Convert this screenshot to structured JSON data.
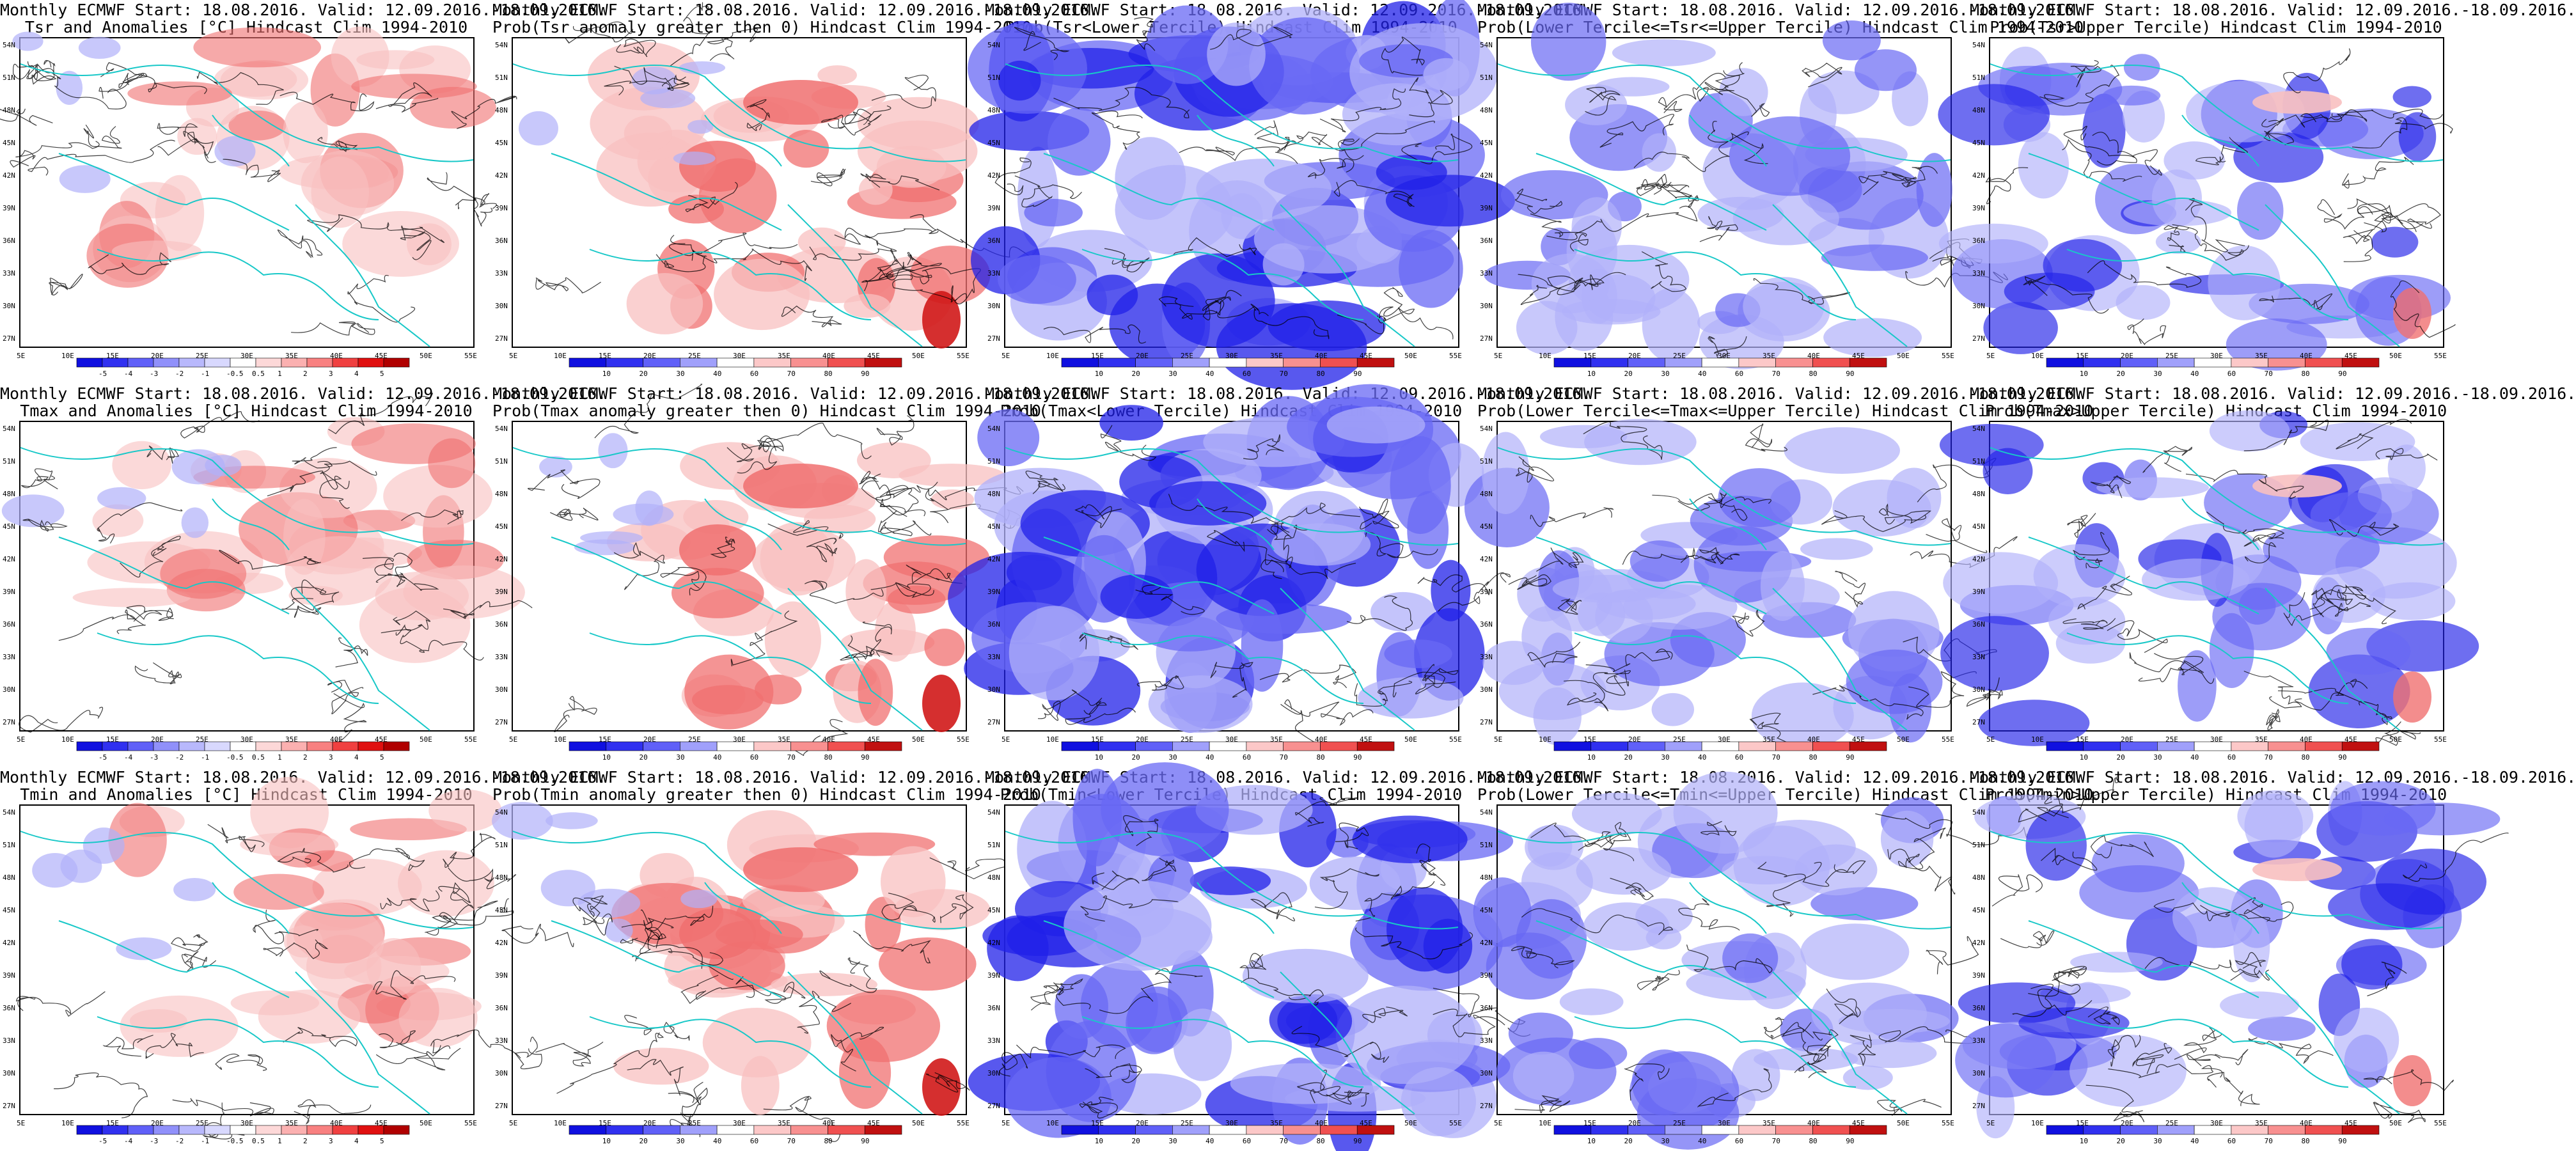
{
  "panels": [
    {
      "title1": "Monthly ECMWF Start: 18.08.2016. Valid: 12.09.2016.-18.09.2016.",
      "title2": "Tsr and Anomalies [°C] Hindcast Clim 1994-2010",
      "kind": "anom",
      "colorbar": "anomaly"
    },
    {
      "title1": "Monthly ECMWF Start: 18.08.2016. Valid: 12.09.2016.-18.09.2016.",
      "title2": "Prob(Tsr anomaly greater then 0) Hindcast Clim 1994-2010",
      "kind": "probpos",
      "colorbar": "prob"
    },
    {
      "title1": "Monthly ECMWF Start: 18.08.2016. Valid: 12.09.2016.-18.09.2016.",
      "title2": "Prob(Tsr<Lower Tercile) Hindcast Clim 1994-2010",
      "kind": "lower",
      "colorbar": "prob"
    },
    {
      "title1": "Monthly ECMWF Start: 18.08.2016. Valid: 12.09.2016.-18.09.2016.",
      "title2": "Prob(Lower Tercile<=Tsr<=Upper Tercile) Hindcast Clim 1994-2010",
      "kind": "middle",
      "colorbar": "prob"
    },
    {
      "title1": "Monthly ECMWF Start: 18.08.2016. Valid: 12.09.2016.-18.09.2016.",
      "title2": "Prob(Tsr>Upper Tercile) Hindcast Clim 1994-2010",
      "kind": "upper",
      "colorbar": "prob"
    },
    {
      "title1": "Monthly ECMWF Start: 18.08.2016. Valid: 12.09.2016.-18.09.2016.",
      "title2": "Tmax and Anomalies [°C] Hindcast Clim 1994-2010",
      "kind": "anom",
      "colorbar": "anomaly"
    },
    {
      "title1": "Monthly ECMWF Start: 18.08.2016. Valid: 12.09.2016.-18.09.2016.",
      "title2": "Prob(Tmax anomaly greater then 0) Hindcast Clim 1994-2010",
      "kind": "probpos",
      "colorbar": "prob"
    },
    {
      "title1": "Monthly ECMWF Start: 18.08.2016. Valid: 12.09.2016.-18.09.2016.",
      "title2": "Prob(Tmax<Lower Tercile) Hindcast Clim 1994-2010",
      "kind": "lower",
      "colorbar": "prob"
    },
    {
      "title1": "Monthly ECMWF Start: 18.08.2016. Valid: 12.09.2016.-18.09.2016.",
      "title2": "Prob(Lower Tercile<=Tmax<=Upper Tercile) Hindcast Clim 1994-2010",
      "kind": "middle",
      "colorbar": "prob"
    },
    {
      "title1": "Monthly ECMWF Start: 18.08.2016. Valid: 12.09.2016.-18.09.2016.",
      "title2": "Prob(Tmax>Upper Tercile) Hindcast Clim 1994-2010",
      "kind": "upper",
      "colorbar": "prob"
    },
    {
      "title1": "Monthly ECMWF Start: 18.08.2016. Valid: 12.09.2016.-18.09.2016.",
      "title2": "Tmin and Anomalies [°C] Hindcast Clim 1994-2010",
      "kind": "anom",
      "colorbar": "anomaly"
    },
    {
      "title1": "Monthly ECMWF Start: 18.08.2016. Valid: 12.09.2016.-18.09.2016.",
      "title2": "Prob(Tmin anomaly greater then 0) Hindcast Clim 1994-2010",
      "kind": "probpos",
      "colorbar": "prob"
    },
    {
      "title1": "Monthly ECMWF Start: 18.08.2016. Valid: 12.09.2016.-18.09.2016.",
      "title2": "Prob(Tmin<Lower Tercile) Hindcast Clim 1994-2010",
      "kind": "lower",
      "colorbar": "prob"
    },
    {
      "title1": "Monthly ECMWF Start: 18.08.2016. Valid: 12.09.2016.-18.09.2016.",
      "title2": "Prob(Lower Tercile<=Tmin<=Upper Tercile) Hindcast Clim 1994-2010",
      "kind": "middle",
      "colorbar": "prob"
    },
    {
      "title1": "Monthly ECMWF Start: 18.08.2016. Valid: 12.09.2016.-18.09.2016.",
      "title2": "Prob(Tmin>Upper Tercile) Hindcast Clim 1994-2010",
      "kind": "upper",
      "colorbar": "prob"
    }
  ],
  "lat_labels": [
    "54N",
    "51N",
    "48N",
    "45N",
    "42N",
    "39N",
    "36N",
    "33N",
    "30N",
    "27N"
  ],
  "lon_labels": [
    "5E",
    "10E",
    "15E",
    "20E",
    "25E",
    "30E",
    "35E",
    "40E",
    "45E",
    "50E",
    "55E"
  ],
  "colorbars": {
    "anomaly": {
      "ticks": [
        "-5",
        "-4",
        "-3",
        "-2",
        "-1",
        "-0.5",
        "0.5",
        "1",
        "2",
        "3",
        "4",
        "5"
      ],
      "colors": [
        "#1010e0",
        "#3030f0",
        "#6060f8",
        "#9090fa",
        "#b8b8fc",
        "#d8d8fe",
        "#ffffff",
        "#fdd8d8",
        "#fbb0b0",
        "#f88080",
        "#f04040",
        "#e01010",
        "#b00000"
      ]
    },
    "prob": {
      "ticks": [
        "10",
        "20",
        "30",
        "40",
        "60",
        "70",
        "80",
        "90"
      ],
      "colors": [
        "#1010e0",
        "#3030f0",
        "#6060f8",
        "#a0a0fb",
        "#ffffff",
        "#fcc8c8",
        "#f89090",
        "#f05050",
        "#c01010"
      ]
    }
  },
  "colors": {
    "contour": "#000000",
    "coast": "#18c8c8",
    "blue_strong": "#2020e8",
    "blue_mid": "#6868f4",
    "blue_light": "#b0b0fa",
    "red_light": "#f8c0c0",
    "red_mid": "#f07070",
    "red_strong": "#d01818"
  }
}
